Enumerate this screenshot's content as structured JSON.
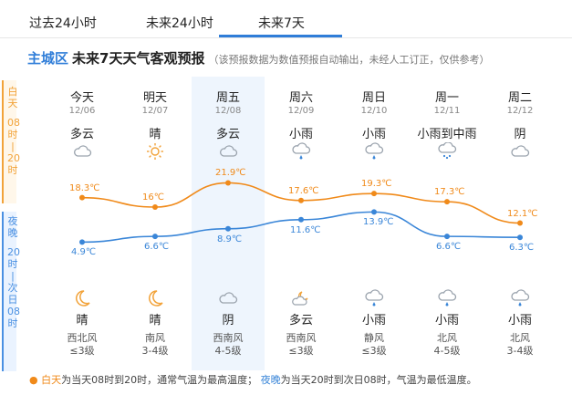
{
  "tabs": [
    {
      "label": "过去24小时",
      "active": false
    },
    {
      "label": "未来24小时",
      "active": false
    },
    {
      "label": "未来7天",
      "active": true
    }
  ],
  "header": {
    "city": "主城区",
    "title": "未来7天天气客观预报",
    "note": "（该预报数据为数值预报自动输出，未经人工订正，仅供参考）"
  },
  "side": {
    "day": [
      "白",
      "天",
      "",
      "08",
      "时",
      "|",
      "20",
      "时"
    ],
    "night": [
      "夜",
      "晚",
      "",
      "20",
      "时",
      "|",
      "次",
      "日",
      "08",
      "时"
    ]
  },
  "days": [
    {
      "name": "今天",
      "date": "12/06",
      "day_cond": "多云",
      "day_icon": "cloudy-icon",
      "night_cond": "晴",
      "night_icon": "moon-icon",
      "wind": "西北风",
      "level": "≤3级",
      "high": 18.3,
      "low": 4.9,
      "high_label": "18.3℃",
      "low_label": "4.9℃"
    },
    {
      "name": "明天",
      "date": "12/07",
      "day_cond": "晴",
      "day_icon": "sun-icon",
      "night_cond": "晴",
      "night_icon": "moon-icon",
      "wind": "南风",
      "level": "3-4级",
      "high": 16,
      "low": 6.6,
      "high_label": "16℃",
      "low_label": "6.6℃"
    },
    {
      "name": "周五",
      "date": "12/08",
      "day_cond": "多云",
      "day_icon": "cloudy-icon",
      "night_cond": "阴",
      "night_icon": "overcast-icon",
      "wind": "西南风",
      "level": "4-5级",
      "high": 21.9,
      "low": 8.9,
      "high_label": "21.9℃",
      "low_label": "8.9℃"
    },
    {
      "name": "周六",
      "date": "12/09",
      "day_cond": "小雨",
      "day_icon": "light-rain-icon",
      "night_cond": "多云",
      "night_icon": "cloudy-moon-icon",
      "wind": "西南风",
      "level": "≤3级",
      "high": 17.6,
      "low": 11.6,
      "high_label": "17.6℃",
      "low_label": "11.6℃"
    },
    {
      "name": "周日",
      "date": "12/10",
      "day_cond": "小雨",
      "day_icon": "light-rain-icon",
      "night_cond": "小雨",
      "night_icon": "light-rain-icon",
      "wind": "静风",
      "level": "≤3级",
      "high": 19.3,
      "low": 13.9,
      "high_label": "19.3℃",
      "low_label": "13.9℃"
    },
    {
      "name": "周一",
      "date": "12/11",
      "day_cond": "小雨到中雨",
      "day_icon": "moderate-rain-icon",
      "night_cond": "小雨",
      "night_icon": "light-rain-icon",
      "wind": "北风",
      "level": "4-5级",
      "high": 17.3,
      "low": 6.6,
      "high_label": "17.3℃",
      "low_label": "6.6℃"
    },
    {
      "name": "周二",
      "date": "12/12",
      "day_cond": "阴",
      "day_icon": "overcast-icon",
      "night_cond": "小雨",
      "night_icon": "light-rain-icon",
      "wind": "北风",
      "level": "3-4级",
      "high": 12.1,
      "low": 6.3,
      "high_label": "12.1℃",
      "low_label": "6.3℃"
    }
  ],
  "footer": {
    "day_key": "白天",
    "day_text": "为当天08时到20时，通常气温为最高温度；",
    "night_key": "夜晚",
    "night_text": "为当天20时到次日08时，气温为最低温度。"
  },
  "colors": {
    "accent": "#2f7dd8",
    "high": "#f08a1a",
    "low": "#3a86d8"
  }
}
